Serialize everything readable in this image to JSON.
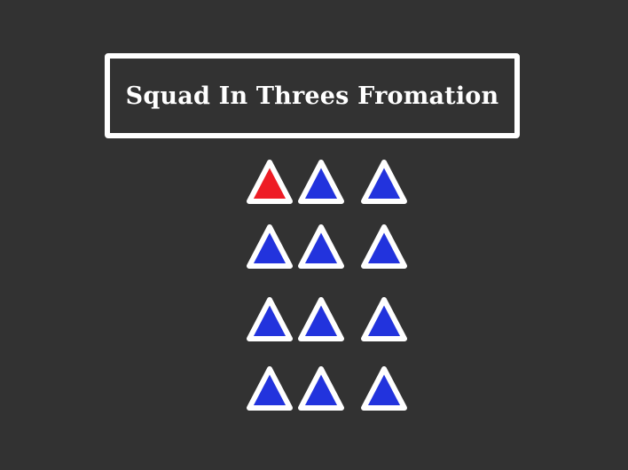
{
  "title": "Squad In Threes Fromation",
  "colors": {
    "background": "#323232",
    "outline": "#ffffff",
    "leader": "#ee1c25",
    "member": "#2233dd"
  },
  "icons": {
    "leader": "triangle-icon",
    "member": "triangle-icon"
  },
  "formation": {
    "rows": 4,
    "columns": 3,
    "members": [
      {
        "row": 1,
        "col": 1,
        "role": "leader"
      },
      {
        "row": 1,
        "col": 2,
        "role": "member"
      },
      {
        "row": 1,
        "col": 3,
        "role": "member"
      },
      {
        "row": 2,
        "col": 1,
        "role": "member"
      },
      {
        "row": 2,
        "col": 2,
        "role": "member"
      },
      {
        "row": 2,
        "col": 3,
        "role": "member"
      },
      {
        "row": 3,
        "col": 1,
        "role": "member"
      },
      {
        "row": 3,
        "col": 2,
        "role": "member"
      },
      {
        "row": 3,
        "col": 3,
        "role": "member"
      },
      {
        "row": 4,
        "col": 1,
        "role": "member"
      },
      {
        "row": 4,
        "col": 2,
        "role": "member"
      },
      {
        "row": 4,
        "col": 3,
        "role": "member"
      }
    ]
  }
}
